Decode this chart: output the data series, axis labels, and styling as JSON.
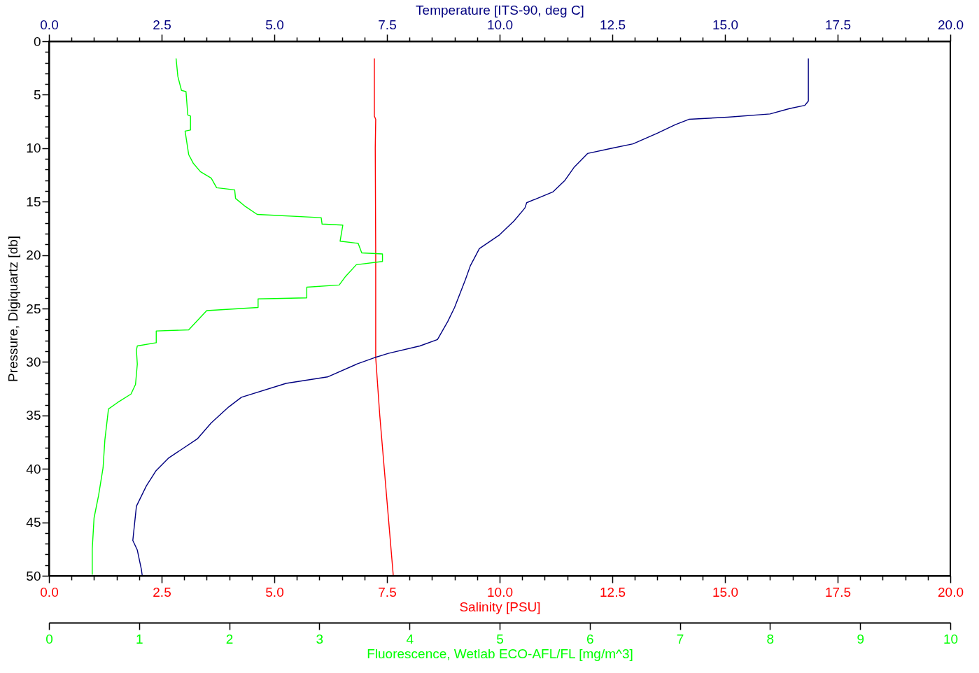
{
  "chart_data": [
    {
      "type": "line",
      "orientation": "horizontal",
      "xlabel": "Salinity [PSU]",
      "x2label": "Temperature [ITS-90, deg C]",
      "ylabel": "Pressure, Digiquartz [db]",
      "ylim": [
        50,
        0
      ],
      "yticks": [
        0,
        {
          "value": 1,
          "label": null
        },
        {
          "value": 2,
          "label": null
        },
        {
          "value": 3,
          "label": null
        },
        {
          "value": 4,
          "label": null
        },
        5,
        {
          "value": 6,
          "label": null
        },
        {
          "value": 7,
          "label": null
        },
        {
          "value": 8,
          "label": null
        },
        {
          "value": 9,
          "label": null
        },
        10,
        {
          "value": 11,
          "label": null
        },
        {
          "value": 12,
          "label": null
        },
        {
          "value": 13,
          "label": null
        },
        {
          "value": 14,
          "label": null
        },
        15,
        {
          "value": 16,
          "label": null
        },
        {
          "value": 17,
          "label": null
        },
        {
          "value": 18,
          "label": null
        },
        {
          "value": 19,
          "label": null
        },
        20,
        {
          "value": 21,
          "label": null
        },
        {
          "value": 22,
          "label": null
        },
        {
          "value": 23,
          "label": null
        },
        {
          "value": 24,
          "label": null
        },
        25,
        {
          "value": 26,
          "label": null
        },
        {
          "value": 27,
          "label": null
        },
        {
          "value": 28,
          "label": null
        },
        {
          "value": 29,
          "label": null
        },
        30,
        {
          "value": 31,
          "label": null
        },
        {
          "value": 32,
          "label": null
        },
        {
          "value": 33,
          "label": null
        },
        {
          "value": 34,
          "label": null
        },
        35,
        {
          "value": 36,
          "label": null
        },
        {
          "value": 37,
          "label": null
        },
        {
          "value": 38,
          "label": null
        },
        {
          "value": 39,
          "label": null
        },
        40,
        {
          "value": 41,
          "label": null
        },
        {
          "value": 42,
          "label": null
        },
        {
          "value": 43,
          "label": null
        },
        {
          "value": 44,
          "label": null
        },
        45,
        {
          "value": 46,
          "label": null
        },
        {
          "value": 47,
          "label": null
        },
        {
          "value": 48,
          "label": null
        },
        {
          "value": 49,
          "label": null
        },
        50
      ],
      "xlim": [
        0,
        20
      ],
      "xticks": [
        {
          "value": 0,
          "label": "0.0"
        },
        {
          "value": 0.5,
          "label": null
        },
        {
          "value": 1,
          "label": null
        },
        {
          "value": 1.5,
          "label": null
        },
        {
          "value": 2,
          "label": null
        },
        2.5,
        {
          "value": 3,
          "label": null
        },
        {
          "value": 3.5,
          "label": null
        },
        {
          "value": 4,
          "label": null
        },
        {
          "value": 4.5,
          "label": null
        },
        {
          "value": 5,
          "label": "5.0"
        },
        {
          "value": 5.5,
          "label": null
        },
        {
          "value": 6,
          "label": null
        },
        {
          "value": 6.5,
          "label": null
        },
        {
          "value": 7,
          "label": null
        },
        7.5,
        {
          "value": 8,
          "label": null
        },
        {
          "value": 8.5,
          "label": null
        },
        {
          "value": 9,
          "label": null
        },
        {
          "value": 9.5,
          "label": null
        },
        {
          "value": 10,
          "label": "10.0"
        },
        {
          "value": 10.5,
          "label": null
        },
        {
          "value": 11,
          "label": null
        },
        {
          "value": 11.5,
          "label": null
        },
        {
          "value": 12,
          "label": null
        },
        12.5,
        {
          "value": 13,
          "label": null
        },
        {
          "value": 13.5,
          "label": null
        },
        {
          "value": 14,
          "label": null
        },
        {
          "value": 14.5,
          "label": null
        },
        {
          "value": 15,
          "label": "15.0"
        },
        {
          "value": 15.5,
          "label": null
        },
        {
          "value": 16,
          "label": null
        },
        {
          "value": 16.5,
          "label": null
        },
        {
          "value": 17,
          "label": null
        },
        17.5,
        {
          "value": 18,
          "label": null
        },
        {
          "value": 18.5,
          "label": null
        },
        {
          "value": 19,
          "label": null
        },
        {
          "value": 19.5,
          "label": null
        },
        {
          "value": 20,
          "label": "20.0"
        }
      ],
      "x2lim": [
        0,
        20
      ],
      "x2ticks": [
        {
          "value": 0,
          "label": "0.0"
        },
        {
          "value": 0.5,
          "label": null
        },
        {
          "value": 1,
          "label": null
        },
        {
          "value": 1.5,
          "label": null
        },
        {
          "value": 2,
          "label": null
        },
        2.5,
        {
          "value": 3,
          "label": null
        },
        {
          "value": 3.5,
          "label": null
        },
        {
          "value": 4,
          "label": null
        },
        {
          "value": 4.5,
          "label": null
        },
        {
          "value": 5,
          "label": "5.0"
        },
        {
          "value": 5.5,
          "label": null
        },
        {
          "value": 6,
          "label": null
        },
        {
          "value": 6.5,
          "label": null
        },
        {
          "value": 7,
          "label": null
        },
        7.5,
        {
          "value": 8,
          "label": null
        },
        {
          "value": 8.5,
          "label": null
        },
        {
          "value": 9,
          "label": null
        },
        {
          "value": 9.5,
          "label": null
        },
        {
          "value": 10,
          "label": "10.0"
        },
        {
          "value": 10.5,
          "label": null
        },
        {
          "value": 11,
          "label": null
        },
        {
          "value": 11.5,
          "label": null
        },
        {
          "value": 12,
          "label": null
        },
        12.5,
        {
          "value": 13,
          "label": null
        },
        {
          "value": 13.5,
          "label": null
        },
        {
          "value": 14,
          "label": null
        },
        {
          "value": 14.5,
          "label": null
        },
        {
          "value": 15,
          "label": "15.0"
        },
        {
          "value": 15.5,
          "label": null
        },
        {
          "value": 16,
          "label": null
        },
        {
          "value": 16.5,
          "label": null
        },
        {
          "value": 17,
          "label": null
        },
        17.5,
        {
          "value": 18,
          "label": null
        },
        {
          "value": 18.5,
          "label": null
        },
        {
          "value": 19,
          "label": null
        },
        {
          "value": 19.5,
          "label": null
        },
        {
          "value": 20,
          "label": "20.0"
        }
      ],
      "series": [
        {
          "color": "#ff0000",
          "x": [
            1.6,
            7.0,
            7.3,
            10,
            20,
            29.6,
            35,
            40,
            45,
            50
          ],
          "values": [
            7.22,
            7.22,
            7.25,
            7.24,
            7.25,
            7.25,
            7.34,
            7.44,
            7.54,
            7.64
          ]
        },
        {
          "axis": "x2",
          "color": "#000080",
          "x": [
            1.6,
            5.6,
            6.0,
            6.3,
            6.8,
            7.1,
            7.3,
            7.8,
            8.6,
            9.6,
            10.0,
            10.5,
            11.8,
            13.0,
            14.1,
            15.1,
            15.6,
            16.8,
            18.1,
            19.4,
            21.0,
            22.3,
            24.9,
            26.2,
            27.9,
            28.5,
            29.2,
            29.6,
            30.2,
            31.4,
            32.0,
            33.3,
            34.2,
            35.7,
            37.2,
            39.0,
            40.2,
            41.6,
            43.5,
            46.7,
            47.6,
            49.4,
            50
          ],
          "values": [
            16.85,
            16.85,
            16.77,
            16.43,
            16.0,
            15.06,
            14.2,
            13.9,
            13.5,
            12.96,
            12.5,
            11.95,
            11.65,
            11.45,
            11.18,
            10.6,
            10.56,
            10.32,
            10.0,
            9.55,
            9.35,
            9.24,
            9.0,
            8.85,
            8.62,
            8.23,
            7.53,
            7.22,
            6.83,
            6.18,
            5.26,
            4.27,
            3.99,
            3.6,
            3.29,
            2.65,
            2.37,
            2.16,
            1.94,
            1.86,
            1.96,
            2.05,
            2.07
          ]
        }
      ]
    },
    {
      "type": "line",
      "orientation": "horizontal",
      "tick_labels": "x",
      "xlabel": "Fluorescence, Wetlab ECO-AFL/FL [mg/m^3]",
      "ylim": [
        50,
        0
      ],
      "xlim": [
        0,
        10
      ],
      "xticks": [
        0,
        1,
        2,
        3,
        4,
        5,
        6,
        7,
        8,
        9,
        10
      ],
      "series": [
        {
          "color": "#00ff00",
          "x": [
            1.6,
            3.3,
            4.6,
            4.7,
            6.9,
            7.0,
            8.3,
            8.4,
            10.6,
            11.4,
            12.2,
            12.8,
            13.7,
            13.9,
            14.7,
            15.4,
            16.2,
            16.5,
            17.1,
            17.2,
            18.7,
            18.9,
            19.8,
            19.9,
            20.6,
            20.9,
            22.0,
            22.8,
            23.0,
            24.0,
            24.1,
            24.9,
            25.2,
            27.0,
            27.1,
            28.2,
            28.5,
            28.9,
            30.2,
            32.1,
            33.0,
            33.8,
            34.4,
            37.3,
            39.9,
            42.5,
            44.6,
            47.5,
            49.9
          ],
          "values": [
            1.41,
            1.43,
            1.47,
            1.52,
            1.54,
            1.57,
            1.57,
            1.51,
            1.55,
            1.6,
            1.68,
            1.8,
            1.86,
            2.06,
            2.07,
            2.17,
            2.31,
            3.02,
            3.03,
            3.26,
            3.23,
            3.43,
            3.47,
            3.7,
            3.7,
            3.41,
            3.29,
            3.22,
            2.86,
            2.86,
            2.32,
            2.32,
            1.75,
            1.55,
            1.19,
            1.19,
            0.98,
            0.97,
            0.98,
            0.96,
            0.91,
            0.76,
            0.66,
            0.62,
            0.6,
            0.55,
            0.5,
            0.48,
            0.48
          ]
        }
      ]
    }
  ]
}
